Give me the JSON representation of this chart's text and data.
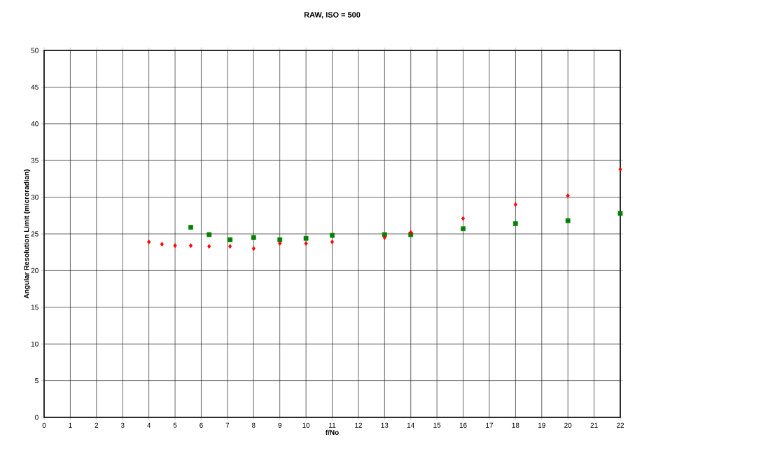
{
  "chart_data": {
    "type": "scatter",
    "title": "RAW, ISO = 500",
    "xlabel": "f/No",
    "ylabel": "Angular Resolution Limit (microradian)",
    "xlim": [
      0,
      22
    ],
    "xticks": [
      0,
      1,
      2,
      3,
      4,
      5,
      6,
      7,
      8,
      9,
      10,
      11,
      12,
      13,
      14,
      15,
      16,
      17,
      18,
      19,
      20,
      21,
      22
    ],
    "ylim": [
      0,
      50
    ],
    "yticks": [
      0,
      5,
      10,
      15,
      20,
      25,
      30,
      35,
      40,
      45,
      50
    ],
    "grid": true,
    "series": [
      {
        "color": "#ff0000",
        "marker": "diamond",
        "x": [
          4,
          4.5,
          5,
          5.6,
          6.3,
          7.1,
          8,
          9,
          10,
          11,
          13,
          14,
          16,
          18,
          20,
          22
        ],
        "values": [
          23.9,
          23.6,
          23.4,
          23.4,
          23.3,
          23.3,
          23.0,
          23.7,
          23.7,
          23.9,
          24.5,
          25.2,
          27.1,
          29.0,
          30.2,
          33.8
        ]
      },
      {
        "color": "#008000",
        "marker": "square",
        "x": [
          5.6,
          6.3,
          7.1,
          8,
          9,
          10,
          11,
          13,
          14,
          16,
          18,
          20,
          22
        ],
        "values": [
          25.9,
          24.9,
          24.2,
          24.5,
          24.2,
          24.4,
          24.8,
          24.9,
          24.9,
          25.7,
          26.4,
          26.8,
          27.8
        ]
      }
    ]
  }
}
